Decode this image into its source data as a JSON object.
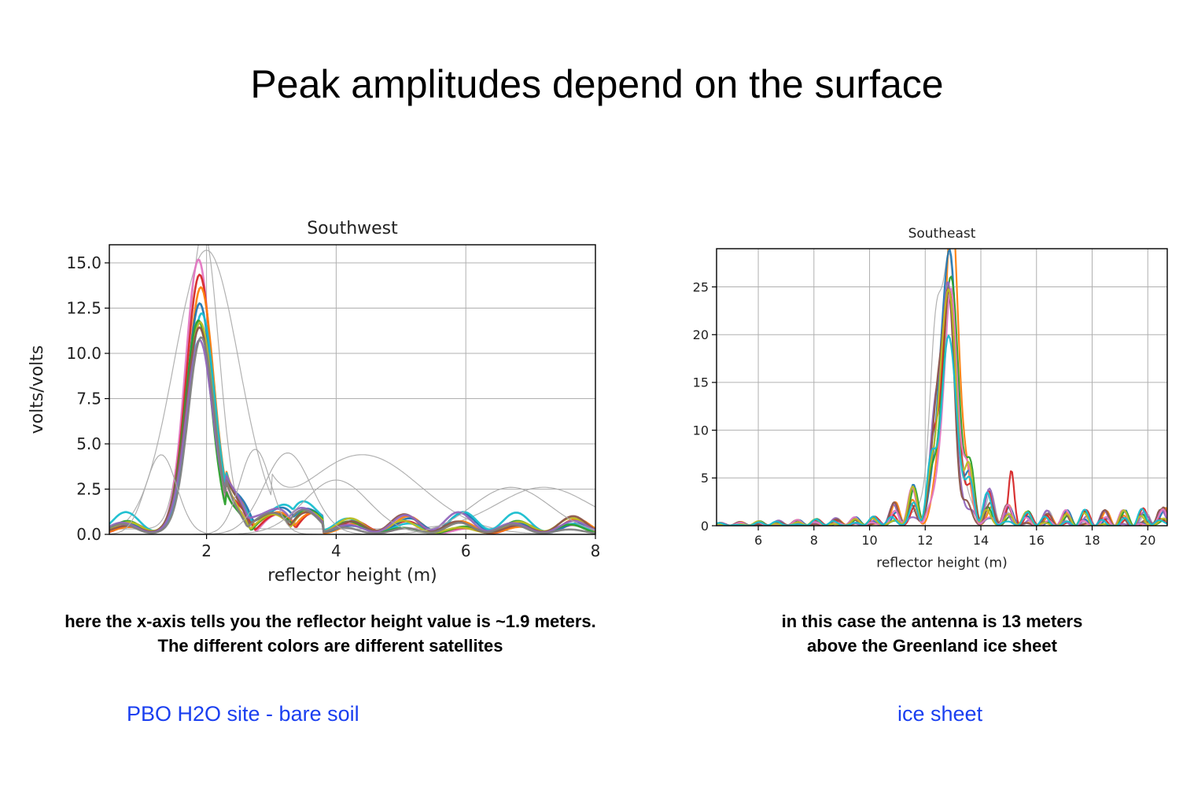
{
  "slide": {
    "title": "Peak amplitudes depend on the surface"
  },
  "chart_data": [
    {
      "type": "line",
      "title": "Southwest",
      "xlabel": "reflector height (m)",
      "ylabel": "volts/volts",
      "xlim": [
        0.5,
        8.0
      ],
      "ylim": [
        0.0,
        16.0
      ],
      "xticks": [
        2,
        4,
        6,
        8
      ],
      "yticks": [
        0.0,
        2.5,
        5.0,
        7.5,
        10.0,
        12.5,
        15.0
      ],
      "grid": true,
      "peak_x": 1.9,
      "series_note": "many overlapping satellite tracks; peak amplitudes about 10 to 16",
      "series": [
        {
          "color": "#aaaaaa",
          "peak_x": 1.95,
          "peak": 16.5,
          "width": 0.28
        },
        {
          "color": "#aaaaaa",
          "peak_x": 2.0,
          "peak": 15.7,
          "width": 0.5
        },
        {
          "color": "#e377c2",
          "peak_x": 1.88,
          "peak": 14.9,
          "width": 0.2
        },
        {
          "color": "#d62728",
          "peak_x": 1.9,
          "peak": 13.9,
          "width": 0.2
        },
        {
          "color": "#ff7f0e",
          "peak_x": 1.92,
          "peak": 13.2,
          "width": 0.2
        },
        {
          "color": "#1f77b4",
          "peak_x": 1.9,
          "peak": 12.4,
          "width": 0.2
        },
        {
          "color": "#17becf",
          "peak_x": 1.93,
          "peak": 12.0,
          "width": 0.2
        },
        {
          "color": "#2ca02c",
          "peak_x": 1.88,
          "peak": 11.6,
          "width": 0.2
        },
        {
          "color": "#bcbd22",
          "peak_x": 1.91,
          "peak": 11.4,
          "width": 0.2
        },
        {
          "color": "#8c564b",
          "peak_x": 1.9,
          "peak": 11.0,
          "width": 0.2
        },
        {
          "color": "#9467bd",
          "peak_x": 1.9,
          "peak": 10.4,
          "width": 0.2
        },
        {
          "color": "#7f7f7f",
          "peak_x": 1.92,
          "peak": 10.8,
          "width": 0.2
        }
      ]
    },
    {
      "type": "line",
      "title": "Southeast",
      "xlabel": "reflector height (m)",
      "ylabel": "",
      "xlim": [
        4.5,
        20.7
      ],
      "ylim": [
        0,
        29
      ],
      "xticks": [
        6,
        8,
        10,
        12,
        14,
        16,
        18,
        20
      ],
      "yticks": [
        0,
        5,
        10,
        15,
        20,
        25
      ],
      "grid": true,
      "peak_x": 12.8,
      "series_note": "many overlapping satellite tracks; peak amplitudes about 18 to 26",
      "series": [
        {
          "color": "#aaaaaa",
          "peak_x": 12.7,
          "peak": 25.0,
          "width": 0.4
        },
        {
          "color": "#ff7f0e",
          "peak_x": 12.95,
          "peak": 26.1,
          "width": 0.3
        },
        {
          "color": "#1f77b4",
          "peak_x": 12.8,
          "peak": 25.7,
          "width": 0.3
        },
        {
          "color": "#2ca02c",
          "peak_x": 12.9,
          "peak": 24.3,
          "width": 0.3
        },
        {
          "color": "#d62728",
          "peak_x": 12.85,
          "peak": 22.5,
          "width": 0.3
        },
        {
          "color": "#9467bd",
          "peak_x": 12.75,
          "peak": 21.0,
          "width": 0.3
        },
        {
          "color": "#8c564b",
          "peak_x": 12.7,
          "peak": 20.0,
          "width": 0.3
        },
        {
          "color": "#e377c2",
          "peak_x": 12.9,
          "peak": 19.0,
          "width": 0.3
        },
        {
          "color": "#bcbd22",
          "peak_x": 12.8,
          "peak": 23.0,
          "width": 0.3
        },
        {
          "color": "#17becf",
          "peak_x": 12.85,
          "peak": 18.0,
          "width": 0.3
        }
      ]
    }
  ],
  "captions": {
    "left_line1": "here the x-axis tells you the reflector height value is ~1.9 meters.",
    "left_line2": "The different colors are different satellites",
    "right_line1": "in this case the antenna is 13 meters",
    "right_line2": "above the Greenland ice sheet"
  },
  "labels": {
    "left_site": "PBO H2O site - bare soil",
    "right_site": "ice sheet"
  },
  "colors": {
    "site_label": "#1a3ff0",
    "grid": "#b0b0b0",
    "axes": "#000000"
  }
}
